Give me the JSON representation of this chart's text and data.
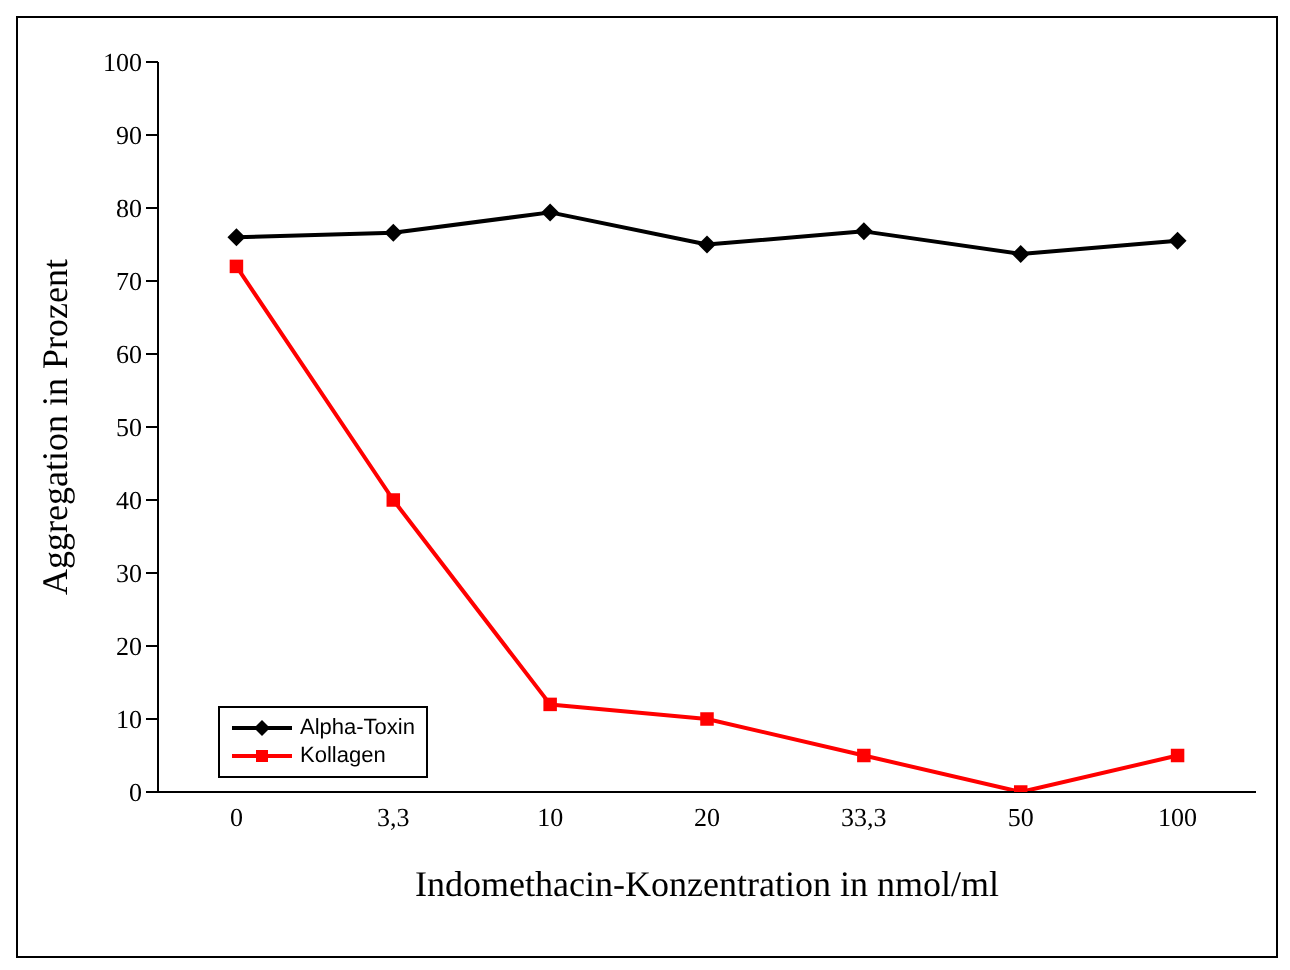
{
  "chart_data": {
    "type": "line",
    "xlabel": "Indomethacin-Konzentration in nmol/ml",
    "ylabel": "Aggregation in Prozent",
    "categories": [
      "0",
      "3,3",
      "10",
      "20",
      "33,3",
      "50",
      "100"
    ],
    "series": [
      {
        "name": "Alpha-Toxin",
        "color": "#000000",
        "marker": "diamond",
        "values": [
          76,
          76.6,
          79.4,
          75,
          76.8,
          73.7,
          75.5
        ]
      },
      {
        "name": "Kollagen",
        "color": "#ff0000",
        "marker": "square",
        "values": [
          72,
          40,
          12,
          10,
          5,
          0,
          5
        ]
      }
    ],
    "ylim": [
      0,
      100
    ],
    "yticks": [
      0,
      10,
      20,
      30,
      40,
      50,
      60,
      70,
      80,
      90,
      100
    ],
    "grid": false,
    "legend": "bottom left"
  }
}
